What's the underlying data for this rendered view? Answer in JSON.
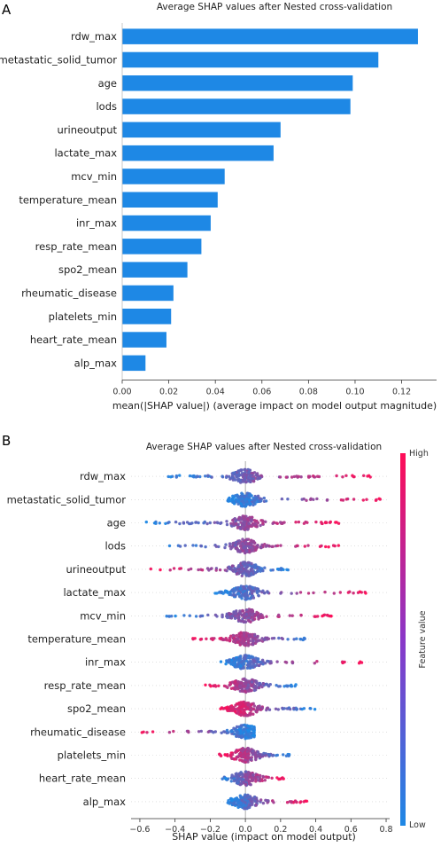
{
  "panels": {
    "a": "A",
    "b": "B"
  },
  "colors": {
    "bar": "#1e88e5",
    "low": "#1e88e5",
    "high": "#ff0d57",
    "zero_line": "#999999"
  },
  "chart_data": [
    {
      "type": "bar",
      "orientation": "horizontal",
      "title": "Average SHAP values after Nested cross-validation",
      "xlabel": "mean(|SHAP value|) (average impact on model output magnitude)",
      "categories": [
        "rdw_max",
        "metastatic_solid_tumor",
        "age",
        "lods",
        "urineoutput",
        "lactate_max",
        "mcv_min",
        "temperature_mean",
        "inr_max",
        "resp_rate_mean",
        "spo2_mean",
        "rheumatic_disease",
        "platelets_min",
        "heart_rate_mean",
        "alp_max"
      ],
      "values": [
        0.127,
        0.11,
        0.099,
        0.098,
        0.068,
        0.065,
        0.044,
        0.041,
        0.038,
        0.034,
        0.028,
        0.022,
        0.021,
        0.019,
        0.01
      ],
      "xlim": [
        0.0,
        0.135
      ],
      "xticks": [
        0.0,
        0.02,
        0.04,
        0.06,
        0.08,
        0.1,
        0.12
      ],
      "xtick_labels": [
        "0.00",
        "0.02",
        "0.04",
        "0.06",
        "0.08",
        "0.10",
        "0.12"
      ]
    },
    {
      "type": "scatter",
      "subtype": "beeswarm",
      "title": "Average SHAP values after Nested cross-validation",
      "xlabel": "SHAP value (impact on model output)",
      "categories": [
        "rdw_max",
        "metastatic_solid_tumor",
        "age",
        "lods",
        "urineoutput",
        "lactate_max",
        "mcv_min",
        "temperature_mean",
        "inr_max",
        "resp_rate_mean",
        "spo2_mean",
        "rheumatic_disease",
        "platelets_min",
        "heart_rate_mean",
        "alp_max"
      ],
      "xlim": [
        -0.65,
        0.82
      ],
      "xticks": [
        -0.6,
        -0.4,
        -0.2,
        0.0,
        0.2,
        0.4,
        0.6,
        0.8
      ],
      "xtick_labels": [
        "−0.6",
        "−0.4",
        "−0.2",
        "0.0",
        "0.2",
        "0.4",
        "0.6",
        "0.8"
      ],
      "colorbar": {
        "label": "Feature value",
        "high": "High",
        "low": "Low"
      },
      "ranges": [
        {
          "min": -0.45,
          "max": 0.75,
          "high_side": "right"
        },
        {
          "min": -0.1,
          "max": 0.78,
          "high_side": "right"
        },
        {
          "min": -0.57,
          "max": 0.55,
          "high_side": "right"
        },
        {
          "min": -0.5,
          "max": 0.55,
          "high_side": "right"
        },
        {
          "min": -0.55,
          "max": 0.26,
          "high_side": "left"
        },
        {
          "min": -0.2,
          "max": 0.7,
          "high_side": "right"
        },
        {
          "min": -0.47,
          "max": 0.5,
          "high_side": "right"
        },
        {
          "min": -0.33,
          "max": 0.45,
          "high_side": "left"
        },
        {
          "min": -0.15,
          "max": 0.67,
          "high_side": "right"
        },
        {
          "min": -0.25,
          "max": 0.3,
          "high_side": "left"
        },
        {
          "min": -0.15,
          "max": 0.4,
          "high_side": "left"
        },
        {
          "min": -0.62,
          "max": 0.05,
          "high_side": "left"
        },
        {
          "min": -0.15,
          "max": 0.25,
          "high_side": "left"
        },
        {
          "min": -0.15,
          "max": 0.22,
          "high_side": "right"
        },
        {
          "min": -0.1,
          "max": 0.35,
          "high_side": "right"
        }
      ]
    }
  ]
}
